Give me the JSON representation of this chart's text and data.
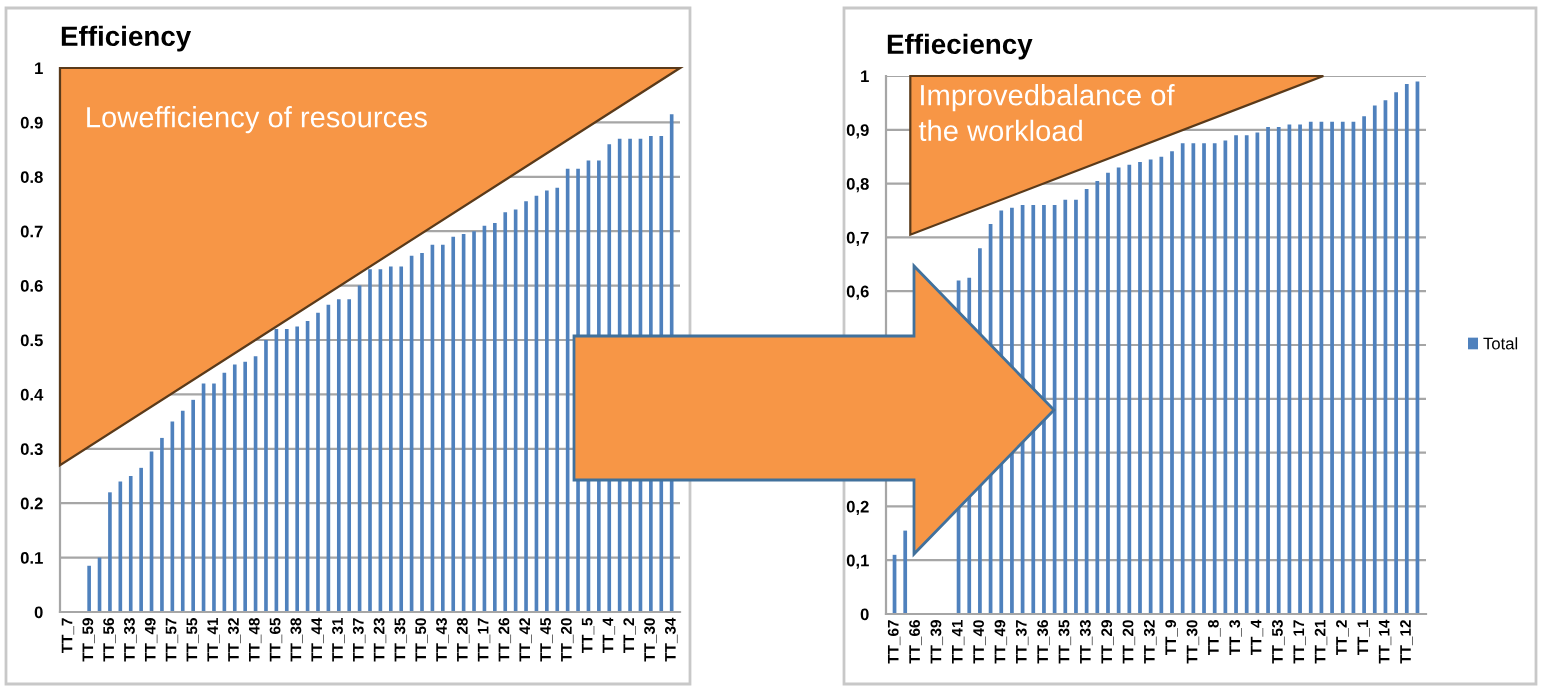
{
  "chart_data": [
    {
      "type": "bar",
      "title": "Efficiency",
      "color": "#4f81bd",
      "categories": [
        "TT_7",
        null,
        "TT_59",
        null,
        "TT_56",
        null,
        "TT_33",
        null,
        "TT_49",
        null,
        "TT_57",
        null,
        "TT_55",
        null,
        "TT_41",
        null,
        "TT_32",
        null,
        "TT_48",
        null,
        "TT_65",
        null,
        "TT_38",
        null,
        "TT_44",
        null,
        "TT_31",
        null,
        "TT_37",
        null,
        "TT_23",
        null,
        "TT_35",
        null,
        "TT_50",
        null,
        "TT_43",
        null,
        "TT_28",
        null,
        "TT_17",
        null,
        "TT_26",
        null,
        "TT_42",
        null,
        "TT_45",
        null,
        "TT_20",
        null,
        "TT_5",
        null,
        "TT_4",
        null,
        "TT_2",
        null,
        "TT_30",
        null,
        "TT_34"
      ],
      "values": [
        0,
        0,
        0.085,
        0.1,
        0.22,
        0.24,
        0.25,
        0.265,
        0.295,
        0.32,
        0.35,
        0.37,
        0.39,
        0.42,
        0.42,
        0.44,
        0.455,
        0.46,
        0.47,
        0.5,
        0.52,
        0.52,
        0.525,
        0.535,
        0.55,
        0.565,
        0.575,
        0.575,
        0.6,
        0.63,
        0.63,
        0.635,
        0.635,
        0.655,
        0.66,
        0.675,
        0.675,
        0.69,
        0.695,
        0.7,
        0.71,
        0.715,
        0.735,
        0.74,
        0.755,
        0.765,
        0.775,
        0.78,
        0.815,
        0.815,
        0.83,
        0.83,
        0.86,
        0.87,
        0.87,
        0.87,
        0.875,
        0.875,
        0.915
      ],
      "ylim": [
        0,
        1
      ],
      "yticks": [
        0,
        0.1,
        0.2,
        0.3,
        0.4,
        0.5,
        0.6,
        0.7,
        0.8,
        0.9,
        1
      ],
      "grid": "y",
      "annotations": [
        "Lowefficiency of resources"
      ]
    },
    {
      "type": "bar",
      "title": "Effieciency",
      "legend": "right",
      "categories": [
        "TT_67",
        null,
        "TT_66",
        null,
        "TT_39",
        null,
        "TT_41",
        null,
        "TT_40",
        null,
        "TT_49",
        null,
        "TT_37",
        null,
        "TT_36",
        null,
        "TT_35",
        null,
        "TT_33",
        null,
        "TT_29",
        null,
        "TT_20",
        null,
        "TT_32",
        null,
        "TT_9",
        null,
        "TT_30",
        null,
        "TT_8",
        null,
        "TT_3",
        null,
        "TT_4",
        null,
        "TT_53",
        null,
        "TT_17",
        null,
        "TT_21",
        null,
        "TT_2",
        null,
        "TT_1",
        null,
        "TT_14",
        null,
        "TT_12",
        null
      ],
      "series": [
        {
          "name": "Total",
          "color": "#4f81bd",
          "values": [
            0.11,
            0.155,
            null,
            null,
            null,
            null,
            0.62,
            0.625,
            0.68,
            0.725,
            0.75,
            0.755,
            0.76,
            0.76,
            0.76,
            0.76,
            0.77,
            0.77,
            0.79,
            0.805,
            0.82,
            0.83,
            0.835,
            0.84,
            0.845,
            0.85,
            0.86,
            0.875,
            0.875,
            0.875,
            0.875,
            0.88,
            0.89,
            0.89,
            0.895,
            0.905,
            0.905,
            0.91,
            0.91,
            0.915,
            0.915,
            0.915,
            0.915,
            0.915,
            0.925,
            0.945,
            0.955,
            0.97,
            0.985,
            0.99
          ]
        }
      ],
      "ylim": [
        0,
        1
      ],
      "yticks": [
        0,
        {
          "value": 0.1,
          "label": "0,1"
        },
        {
          "value": 0.2,
          "label": "0,2"
        },
        {
          "value": 0.3,
          "label": null
        },
        {
          "value": 0.4,
          "label": null
        },
        {
          "value": 0.5,
          "label": null
        },
        {
          "value": 0.6,
          "label": "0,6"
        },
        {
          "value": 0.7,
          "label": "0,7"
        },
        {
          "value": 0.8,
          "label": "0,8"
        },
        {
          "value": 0.9,
          "label": "0,9"
        },
        1
      ],
      "grid": "y",
      "annotations": [
        "Improvedbalance of\nthe workload"
      ]
    }
  ]
}
